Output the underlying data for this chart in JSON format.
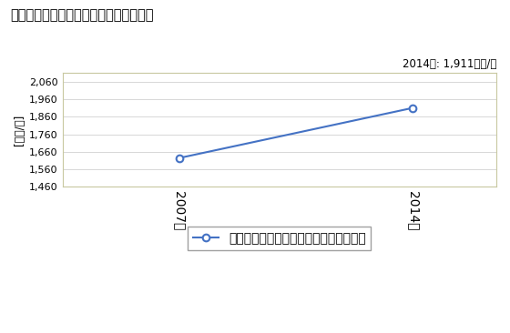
{
  "title": "商業の従業者一人当たり年間商品販売額",
  "ylabel": "[万円/人]",
  "annotation": "2014年: 1,911万円/人",
  "years": [
    2007,
    2014
  ],
  "values": [
    1624,
    1911
  ],
  "ylim": [
    1460,
    2110
  ],
  "yticks": [
    1460,
    1560,
    1660,
    1760,
    1860,
    1960,
    2060
  ],
  "line_color": "#4472C4",
  "marker_color": "#4472C4",
  "bg_plot": "#FFFFFF",
  "bg_fig": "#FFFFFF",
  "legend_label": "商業の従業者一人当たり年間商品販売額",
  "border_color": "#C8C8A0"
}
